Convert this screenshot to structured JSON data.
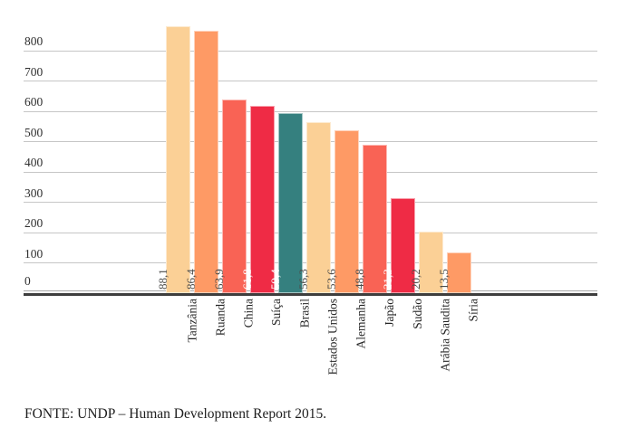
{
  "chart_data": {
    "type": "bar",
    "title": "",
    "xlabel": "",
    "ylabel": "",
    "categories": [
      "Tanzânia",
      "Ruanda",
      "China",
      "Suíça",
      "Brasil",
      "Estados Unidos",
      "Alemanha",
      "Japão",
      "Sudão",
      "Arábia Saudita",
      "Síria"
    ],
    "values": [
      88.1,
      86.4,
      63.9,
      61.8,
      59.4,
      56.3,
      53.6,
      48.8,
      31.3,
      20.2,
      13.5
    ],
    "value_labels": [
      "88,1",
      "86,4",
      "63,9",
      "61,8",
      "59,4",
      "56,3",
      "53,6",
      "48,8",
      "31,3",
      "20,2",
      "13,5"
    ],
    "bar_height_scale": 10,
    "yticks": [
      0,
      100,
      200,
      300,
      400,
      500,
      600,
      700,
      800
    ],
    "ylim": [
      0,
      905
    ],
    "grid": true,
    "legend": false,
    "bar_colors": [
      "#FBD096",
      "#FE9A65",
      "#F96355",
      "#EF2B45",
      "#35807F",
      "#FBD096",
      "#FE9A65",
      "#F96355",
      "#EF2B45",
      "#FBD096",
      "#FE9A65"
    ],
    "value_label_colors": [
      "#4d4d4b",
      "#4d4d4b",
      "#4d4d4b",
      "#ffffff",
      "#ffffff",
      "#4d4d4b",
      "#4d4d4b",
      "#4d4d4b",
      "#ffffff",
      "#4d4d4b",
      "#4d4d4b"
    ]
  },
  "palette": {
    "peach": "#FBD096",
    "orange": "#FE9A65",
    "salmon": "#F96355",
    "crimson": "#EF2B45",
    "teal": "#35807F",
    "gridline": "#c6c6c6",
    "axis": "#3e3e3e"
  },
  "source": "FONTE: UNDP – Human Development Report 2015."
}
